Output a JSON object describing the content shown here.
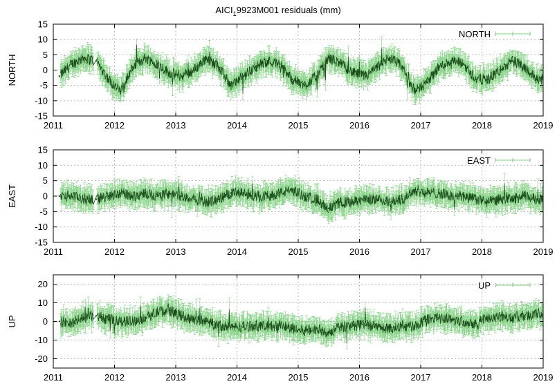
{
  "figure": {
    "title_main": "AICI",
    "title_sub": "1",
    "title_rest": "9923M001 residuals (mm)"
  },
  "colors": {
    "errorbar": "#7ccf7c",
    "series": "#1a4d1a",
    "grid": "#bbbbbb",
    "axis": "#000000"
  },
  "chart_data": [
    {
      "type": "scatter",
      "name": "NORTH",
      "ylabel": "NORTH",
      "xlim": [
        2011,
        2019
      ],
      "ylim": [
        -15,
        15
      ],
      "xticks": [
        2011,
        2012,
        2013,
        2014,
        2015,
        2016,
        2017,
        2018,
        2019
      ],
      "yticks": [
        -15,
        -10,
        -5,
        0,
        5,
        10,
        15
      ],
      "grid": true,
      "legend": "top-right",
      "errorbars": true,
      "series": [
        {
          "name": "NORTH",
          "x": [
            2011.1,
            2011.3,
            2011.5,
            2011.7,
            2011.9,
            2012.1,
            2012.3,
            2012.5,
            2012.7,
            2012.9,
            2013.1,
            2013.3,
            2013.5,
            2013.7,
            2013.9,
            2014.1,
            2014.3,
            2014.5,
            2014.7,
            2014.9,
            2015.1,
            2015.3,
            2015.5,
            2015.7,
            2015.9,
            2016.1,
            2016.3,
            2016.5,
            2016.7,
            2016.9,
            2017.1,
            2017.3,
            2017.5,
            2017.7,
            2017.9,
            2018.1,
            2018.3,
            2018.5,
            2018.7,
            2018.9
          ],
          "y": [
            -2,
            2,
            4,
            3,
            -3,
            -7,
            1,
            4,
            2,
            -1,
            -2,
            0,
            4,
            1,
            -5,
            -2,
            1,
            3,
            2,
            -3,
            -5,
            -2,
            4,
            2,
            -1,
            -2,
            1,
            4,
            1,
            -7,
            -4,
            1,
            3,
            2,
            -3,
            -3,
            0,
            3,
            1,
            -3
          ]
        }
      ]
    },
    {
      "type": "scatter",
      "name": "EAST",
      "ylabel": "EAST",
      "xlim": [
        2011,
        2019
      ],
      "ylim": [
        -15,
        15
      ],
      "xticks": [
        2011,
        2012,
        2013,
        2014,
        2015,
        2016,
        2017,
        2018,
        2019
      ],
      "yticks": [
        -15,
        -10,
        -5,
        0,
        5,
        10,
        15
      ],
      "grid": true,
      "legend": "top-right",
      "errorbars": true,
      "series": [
        {
          "name": "EAST",
          "x": [
            2011.1,
            2011.3,
            2011.5,
            2011.7,
            2011.9,
            2012.1,
            2012.3,
            2012.5,
            2012.7,
            2012.9,
            2013.1,
            2013.3,
            2013.5,
            2013.7,
            2013.9,
            2014.1,
            2014.3,
            2014.5,
            2014.7,
            2014.9,
            2015.1,
            2015.3,
            2015.5,
            2015.7,
            2015.9,
            2016.1,
            2016.3,
            2016.5,
            2016.7,
            2016.9,
            2017.1,
            2017.3,
            2017.5,
            2017.7,
            2017.9,
            2018.1,
            2018.3,
            2018.5,
            2018.7,
            2018.9
          ],
          "y": [
            0,
            0,
            -1,
            -1,
            0,
            1,
            0,
            1,
            0,
            1,
            0,
            -1,
            -2,
            -1,
            1,
            1,
            0,
            0,
            1,
            2,
            0,
            -1,
            -4,
            -2,
            -2,
            -1,
            -1,
            -2,
            -1,
            2,
            1,
            1,
            0,
            0,
            -1,
            -2,
            -1,
            -1,
            0,
            -1
          ]
        }
      ]
    },
    {
      "type": "scatter",
      "name": "UP",
      "ylabel": "UP",
      "xlim": [
        2011,
        2019
      ],
      "ylim": [
        -25,
        25
      ],
      "xticks": [
        2011,
        2012,
        2013,
        2014,
        2015,
        2016,
        2017,
        2018,
        2019
      ],
      "yticks": [
        -20,
        -10,
        0,
        10,
        20
      ],
      "grid": true,
      "legend": "top-right",
      "errorbars": true,
      "series": [
        {
          "name": "UP",
          "x": [
            2011.1,
            2011.3,
            2011.5,
            2011.7,
            2011.9,
            2012.1,
            2012.3,
            2012.5,
            2012.7,
            2012.9,
            2013.1,
            2013.3,
            2013.5,
            2013.7,
            2013.9,
            2014.1,
            2014.3,
            2014.5,
            2014.7,
            2014.9,
            2015.1,
            2015.3,
            2015.5,
            2015.7,
            2015.9,
            2016.1,
            2016.3,
            2016.5,
            2016.7,
            2016.9,
            2017.1,
            2017.3,
            2017.5,
            2017.7,
            2017.9,
            2018.1,
            2018.3,
            2018.5,
            2018.7,
            2018.9
          ],
          "y": [
            0,
            -1,
            2,
            3,
            1,
            0,
            0,
            2,
            5,
            6,
            3,
            1,
            0,
            -2,
            -3,
            -3,
            -2,
            -3,
            -2,
            -4,
            -5,
            -4,
            -6,
            -3,
            -2,
            -2,
            -3,
            -4,
            -2,
            -3,
            1,
            2,
            1,
            0,
            -1,
            2,
            3,
            2,
            3,
            4
          ]
        }
      ]
    }
  ]
}
